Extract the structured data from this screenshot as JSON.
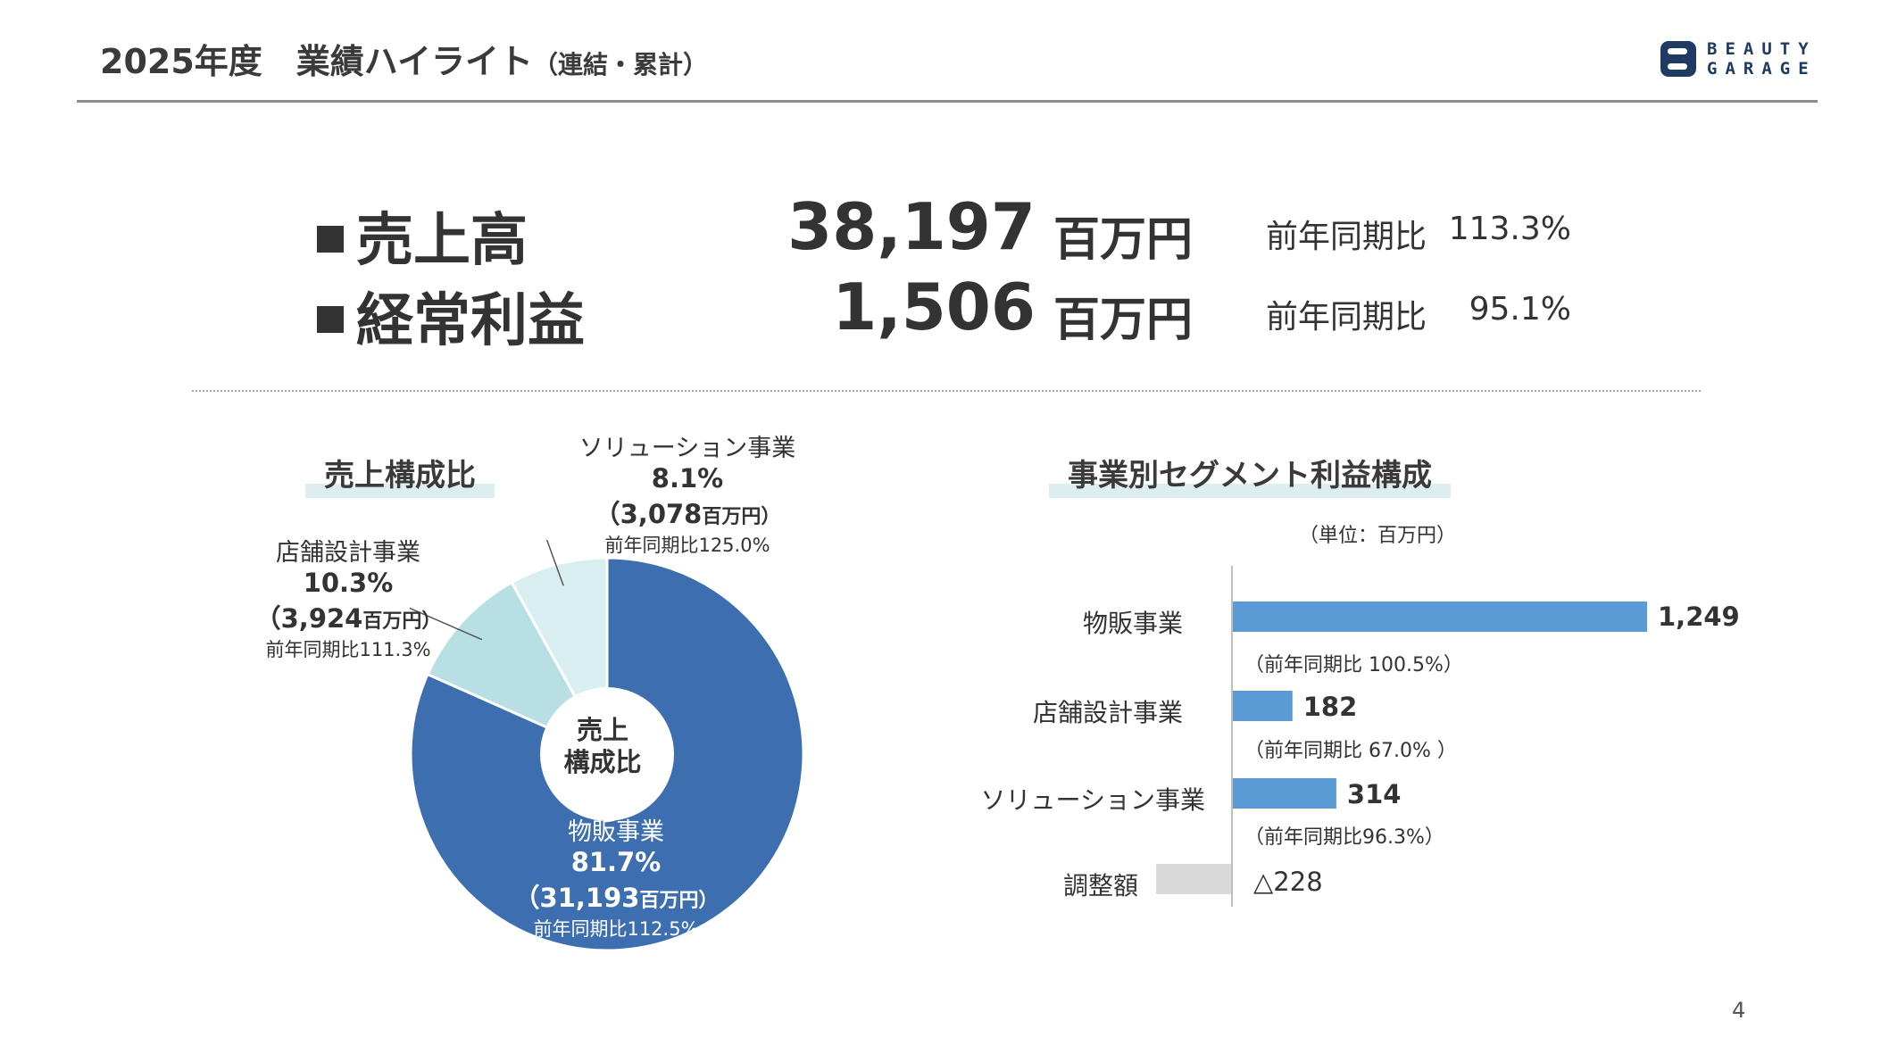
{
  "header": {
    "title": "2025年度　業績ハイライト",
    "subtitle": "（連結・累計）",
    "logo_line1": "BEAUTY",
    "logo_line2": "GARAGE"
  },
  "kpis": [
    {
      "label": "売上高",
      "value": "38,197",
      "unit": "百万円",
      "yoy_label": "前年同期比",
      "yoy_value": "113.3%"
    },
    {
      "label": "経常利益",
      "value": "1,506",
      "unit": "百万円",
      "yoy_label": "前年同期比",
      "yoy_value": "95.1%"
    }
  ],
  "colors": {
    "primary": "#3d6fb0",
    "light_teal": "#b8e0e4",
    "lighter_teal": "#d9eef0",
    "bar_blue": "#5b9bd5",
    "bar_gray": "#d9d9d9",
    "text": "#333333"
  },
  "chart_data": [
    {
      "type": "pie",
      "title": "売上構成比",
      "center_label_line1": "売上",
      "center_label_line2": "構成比",
      "slices": [
        {
          "name": "物販事業",
          "percent_label": "81.7%",
          "value": 31193,
          "amount_label": "（31,193",
          "amount_unit": "百万円）",
          "yoy": "前年同期比112.5%",
          "color": "#3d6fb0"
        },
        {
          "name": "店舗設計事業",
          "percent_label": "10.3%",
          "value": 3924,
          "amount_label": "（3,924",
          "amount_unit": "百万円）",
          "yoy": "前年同期比111.3%",
          "color": "#b8e0e4"
        },
        {
          "name": "ソリューション事業",
          "percent_label": "8.1%",
          "value": 3078,
          "amount_label": "（3,078",
          "amount_unit": "百万円）",
          "yoy": "前年同期比125.0%",
          "color": "#d9eef0"
        }
      ]
    },
    {
      "type": "bar",
      "orientation": "horizontal",
      "title": "事業別セグメント利益構成",
      "unit_note": "（単位：百万円）",
      "categories": [
        "物販事業",
        "店舗設計事業",
        "ソリューション事業",
        "調整額"
      ],
      "values": [
        1249,
        182,
        314,
        -228
      ],
      "value_labels": [
        "1,249",
        "182",
        "314",
        "△228"
      ],
      "notes": [
        "（前年同期比 100.5%）",
        "（前年同期比 67.0% ）",
        "（前年同期比96.3%）",
        ""
      ],
      "colors": [
        "#5b9bd5",
        "#5b9bd5",
        "#5b9bd5",
        "#d9d9d9"
      ]
    }
  ],
  "page_number": "4"
}
